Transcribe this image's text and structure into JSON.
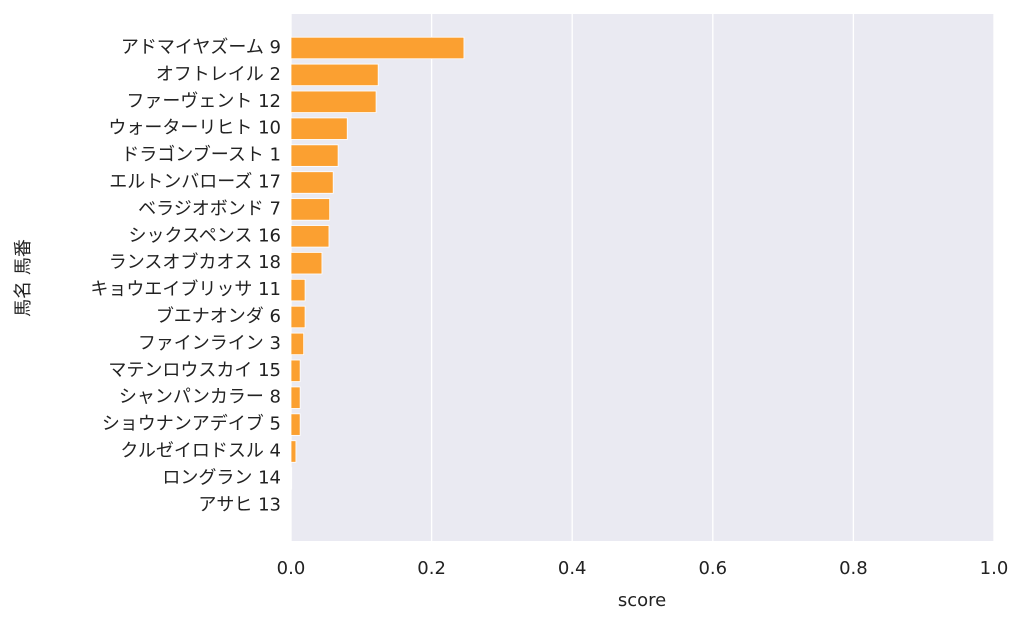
{
  "chart_data": {
    "type": "barh",
    "xlabel": "score",
    "ylabel": "馬名 馬番",
    "categories": [
      "アドマイヤズーム 9",
      "オフトレイル 2",
      "ファーヴェント 12",
      "ウォーターリヒト 10",
      "ドラゴンブースト 1",
      "エルトンバローズ 17",
      "ベラジオボンド 7",
      "シックスペンス 16",
      "ランスオブカオス 18",
      "キョウエイブリッサ 11",
      "ブエナオンダ 6",
      "ファインライン 3",
      "マテンロウスカイ 15",
      "シャンパンカラー 8",
      "ショウナンアデイブ 5",
      "クルゼイロドスル 4",
      "ロングラン 14",
      "アサヒ 13"
    ],
    "values": [
      0.246,
      0.124,
      0.121,
      0.08,
      0.067,
      0.06,
      0.055,
      0.054,
      0.044,
      0.02,
      0.02,
      0.018,
      0.013,
      0.013,
      0.013,
      0.007,
      0.001,
      0
    ],
    "color": "#fba031",
    "xlim": [
      0,
      1
    ],
    "xticks": [
      {
        "value": 0,
        "label": "0.0"
      },
      {
        "value": 0.2,
        "label": "0.2"
      },
      {
        "value": 0.4,
        "label": "0.4"
      },
      {
        "value": 0.6,
        "label": "0.6"
      },
      {
        "value": 0.8,
        "label": "0.8"
      },
      {
        "value": 1,
        "label": "1.0"
      }
    ],
    "grid": true
  }
}
